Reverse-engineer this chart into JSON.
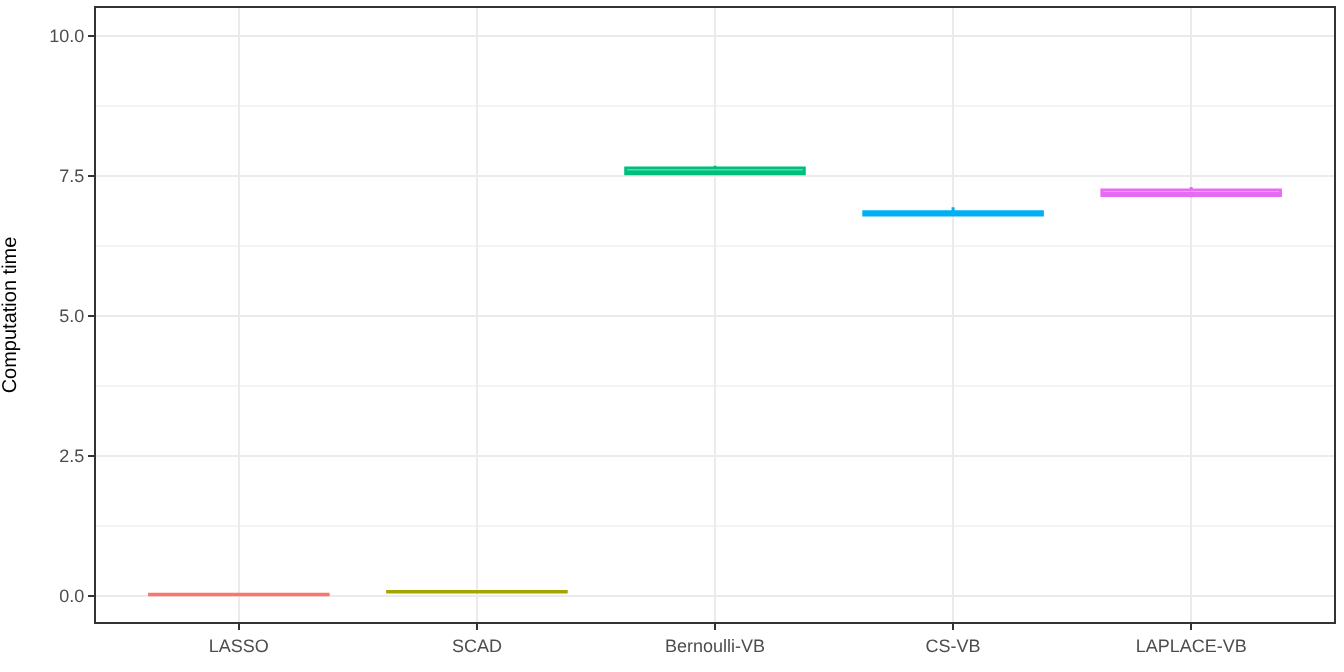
{
  "chart_data": {
    "type": "box",
    "ylabel": "Computation time",
    "categories": [
      "LASSO",
      "SCAD",
      "Bernoulli-VB",
      "CS-VB",
      "LAPLACE-VB"
    ],
    "boxes": [
      {
        "low": 0.01,
        "q1": 0.015,
        "median": 0.02,
        "q3": 0.025,
        "high": 0.03
      },
      {
        "low": 0.06,
        "q1": 0.065,
        "median": 0.07,
        "q3": 0.075,
        "high": 0.08
      },
      {
        "low": 7.54,
        "q1": 7.54,
        "median": 7.56,
        "q3": 7.64,
        "high": 7.68
      },
      {
        "low": 6.8,
        "q1": 6.8,
        "median": 6.82,
        "q3": 6.86,
        "high": 6.94
      },
      {
        "low": 7.12,
        "q1": 7.15,
        "median": 7.18,
        "q3": 7.25,
        "high": 7.3
      }
    ],
    "colors": [
      "#f8766d",
      "#a3a500",
      "#00bf7d",
      "#00b0f6",
      "#e76bf3"
    ],
    "ylim": [
      -0.47,
      10.5
    ],
    "yticks": [
      {
        "value": 0,
        "label": "0.0"
      },
      {
        "value": 2.5,
        "label": "2.5"
      },
      {
        "value": 5,
        "label": "5.0"
      },
      {
        "value": 7.5,
        "label": "7.5"
      },
      {
        "value": 10,
        "label": "10.0"
      }
    ],
    "grid": true
  }
}
